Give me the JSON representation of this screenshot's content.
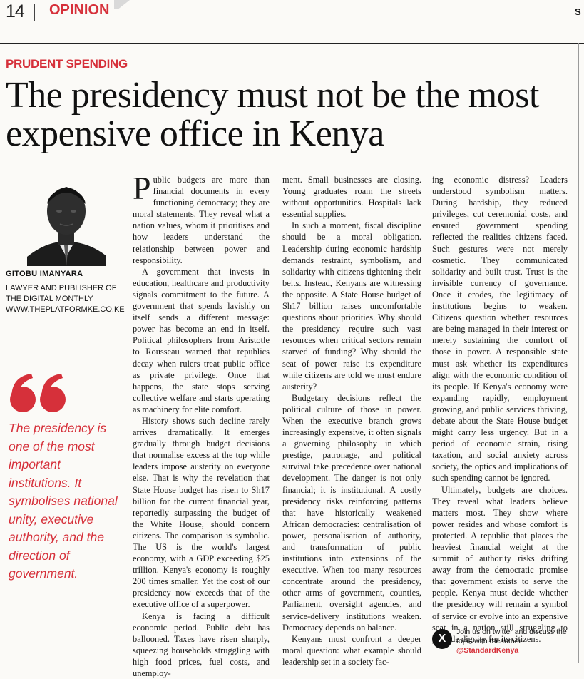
{
  "header": {
    "page_number": "14",
    "section": "OPINION",
    "edge_letter": "S"
  },
  "article": {
    "kicker": "PRUDENT SPENDING",
    "headline": "The presidency must not be the most expensive office in Kenya",
    "author": {
      "name": "GITOBU IMANYARA",
      "bio": "Lawyer and publisher of The Digital Monthly www.theplatformke.co.ke"
    },
    "pull_quote": "The presidency is one of the most important institutions. It symbolises national unity, executive authority, and the direction of government.",
    "col1": {
      "dropcap": "P",
      "p1_rest": "ublic budgets are more than financial documents in every functioning democracy; they are moral statements. They reveal what a nation values, whom it prioritises and how leaders understand the relationship between power and responsibility.",
      "p2": "A government that invests in education, healthcare and productivity signals commitment to the future. A government that spends lavishly on itself sends a different message: power has become an end in itself. Political philosophers from Aristotle to Rousseau warned that republics decay when rulers treat public office as private privilege. Once that happens, the state stops serving collective welfare and starts operating as machinery for elite comfort.",
      "p3": "History shows such decline rarely arrives dramatically. It emerges gradually through budget decisions that normalise excess at the top while leaders impose austerity on everyone else. That is why the revelation that State House budget has risen to Sh17 billion for the current financial year, reportedly surpassing the budget of the White House, should concern citizens. The comparison is symbolic. The US is the world's largest economy, with a GDP exceeding $25 trillion. Kenya's economy is roughly 200 times smaller. Yet the cost of our presidency now exceeds that of the executive office of a superpower.",
      "p4": "Kenya is facing a difficult economic period. Public debt has ballooned. Taxes have risen sharply, squeezing households struggling with high food prices, fuel costs, and unemploy-"
    },
    "col2": {
      "p1": "ment. Small businesses are closing. Young graduates roam the streets without opportunities. Hospitals lack essential supplies.",
      "p2": "In such a moment, fiscal discipline should be a moral obligation. Leadership during economic hardship demands restraint, symbolism, and solidarity with citizens tightening their belts. Instead, Kenyans are witnessing the opposite. A State House budget of Sh17 billion raises uncomfortable questions about priorities. Why should the presidency require such vast resources when critical sectors remain starved of funding? Why should the seat of power raise its expenditure while citizens are told we must endure austerity?",
      "p3": "Budgetary decisions reflect the political culture of those in power. When the executive branch grows increasingly expensive, it often signals a governing philosophy in which prestige, patronage, and political survival take precedence over national development. The danger is not only financial; it is institutional. A costly presidency risks reinforcing patterns that have historically weakened African democracies: centralisation of power, personalisation of authority, and transformation of public institutions into extensions of the executive. When too many resources concentrate around the presidency, other arms of government, counties, Parliament, oversight agencies, and service-delivery institutions weaken. Democracy depends on balance.",
      "p4": "Kenyans must confront a deeper moral question: what example should leadership set in a society fac-"
    },
    "col3": {
      "p1": "ing economic distress? Leaders understood symbolism matters. During hardship, they reduced privileges, cut ceremonial costs, and ensured government spending reflected the realities citizens faced. Such gestures were not merely cosmetic. They communicated solidarity and built trust. Trust is the invisible currency of governance. Once it erodes, the legitimacy of institutions begins to weaken. Citizens question whether resources are being managed in their interest or merely sustaining the comfort of those in power. A responsible state must ask whether its expenditures align with the economic condition of its people. If Kenya's economy were expanding rapidly, employment growing, and public services thriving, debate about the State House budget might carry less urgency. But in a period of economic strain, rising taxation, and social anxiety across society, the optics and implications of such spending cannot be ignored.",
      "p2": "Ultimately, budgets are choices. They reveal what leaders believe matters most. They show where power resides and whose comfort is protected. A republic that places the heaviest financial weight at the summit of authority risks drifting away from the democratic promise that government exists to serve the people. Kenya must decide whether the presidency will remain a symbol of service or evolve into an expensive seat in a nation still struggling to provide dignity for its citizens."
    },
    "social": {
      "icon": "x-logo-icon",
      "icon_glyph": "X",
      "text": "Join us on twitter and discuss the topic with theauthor",
      "handle": "@StandardKenya"
    }
  },
  "colors": {
    "accent_red": "#d6303a",
    "ink": "#111111",
    "paper": "#fbfaf7"
  }
}
